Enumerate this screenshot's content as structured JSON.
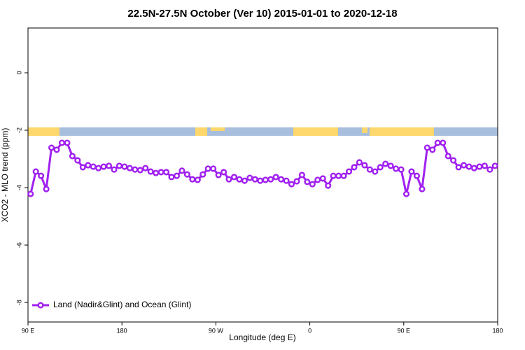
{
  "chart_data": {
    "type": "line",
    "title": "22.5N-27.5N October (Ver 10)   2015-01-01 to 2020-12-18",
    "xlabel": "Longitude (deg E)",
    "ylabel": "XCO2 - MLO trend (ppm)",
    "xlim": [
      90,
      540
    ],
    "ylim": [
      -8.68,
      1.56
    ],
    "xticks": [
      {
        "value": 90,
        "label": "90 E"
      },
      180,
      {
        "value": 270,
        "label": "90 W"
      },
      {
        "value": 360,
        "label": "0"
      },
      {
        "value": 450,
        "label": "90 E"
      },
      {
        "value": 540,
        "label": "180"
      }
    ],
    "yticks": [
      0,
      -2,
      -4,
      -6,
      -8
    ],
    "legend": "bottomleft",
    "x": [
      92.5,
      97.5,
      102.5,
      107.5,
      112.5,
      117.5,
      122.5,
      127.5,
      132.5,
      137.5,
      142.5,
      147.5,
      152.5,
      157.5,
      162.5,
      167.5,
      172.5,
      177.5,
      182.5,
      187.5,
      192.5,
      197.5,
      202.5,
      207.5,
      212.5,
      217.5,
      222.5,
      227.5,
      232.5,
      237.5,
      242.5,
      247.5,
      252.5,
      257.5,
      262.5,
      267.5,
      272.5,
      277.5,
      282.5,
      287.5,
      292.5,
      297.5,
      302.5,
      307.5,
      312.5,
      317.5,
      322.5,
      327.5,
      332.5,
      337.5,
      342.5,
      347.5,
      352.5,
      357.5,
      362.5,
      367.5,
      372.5,
      377.5,
      382.5,
      387.5,
      392.5,
      397.5,
      402.5,
      407.5,
      412.5,
      417.5,
      422.5,
      427.5,
      432.5,
      437.5,
      442.5,
      447.5,
      452.5,
      457.5,
      462.5,
      467.5,
      472.5,
      477.5,
      482.5,
      487.5,
      492.5,
      497.5,
      502.5,
      507.5,
      512.5,
      517.5,
      522.5,
      527.5,
      532.5,
      537.5
    ],
    "series": [
      {
        "name": "Land (Nadir&Glint) and Ocean (Glint)",
        "color": "#a020f0",
        "values": [
          -4.22,
          -3.44,
          -3.59,
          -4.05,
          -2.61,
          -2.68,
          -2.44,
          -2.44,
          -2.9,
          -3.05,
          -3.29,
          -3.22,
          -3.27,
          -3.32,
          -3.27,
          -3.24,
          -3.37,
          -3.24,
          -3.27,
          -3.32,
          -3.37,
          -3.39,
          -3.32,
          -3.44,
          -3.49,
          -3.46,
          -3.46,
          -3.63,
          -3.59,
          -3.41,
          -3.54,
          -3.71,
          -3.73,
          -3.54,
          -3.34,
          -3.34,
          -3.56,
          -3.46,
          -3.71,
          -3.63,
          -3.71,
          -3.76,
          -3.66,
          -3.71,
          -3.76,
          -3.73,
          -3.71,
          -3.63,
          -3.71,
          -3.76,
          -3.88,
          -3.78,
          -3.56,
          -3.8,
          -3.88,
          -3.73,
          -3.68,
          -3.93,
          -3.59,
          -3.59,
          -3.59,
          -3.44,
          -3.29,
          -3.12,
          -3.22,
          -3.37,
          -3.44,
          -3.29,
          -3.17,
          -3.24,
          -3.34,
          -3.37,
          -4.22,
          -3.44,
          -3.59,
          -4.05,
          -2.61,
          -2.68,
          -2.44,
          -2.44,
          -2.9,
          -3.05,
          -3.29,
          -3.22,
          -3.27,
          -3.32,
          -3.27,
          -3.24,
          -3.37,
          -3.24
        ]
      }
    ]
  }
}
